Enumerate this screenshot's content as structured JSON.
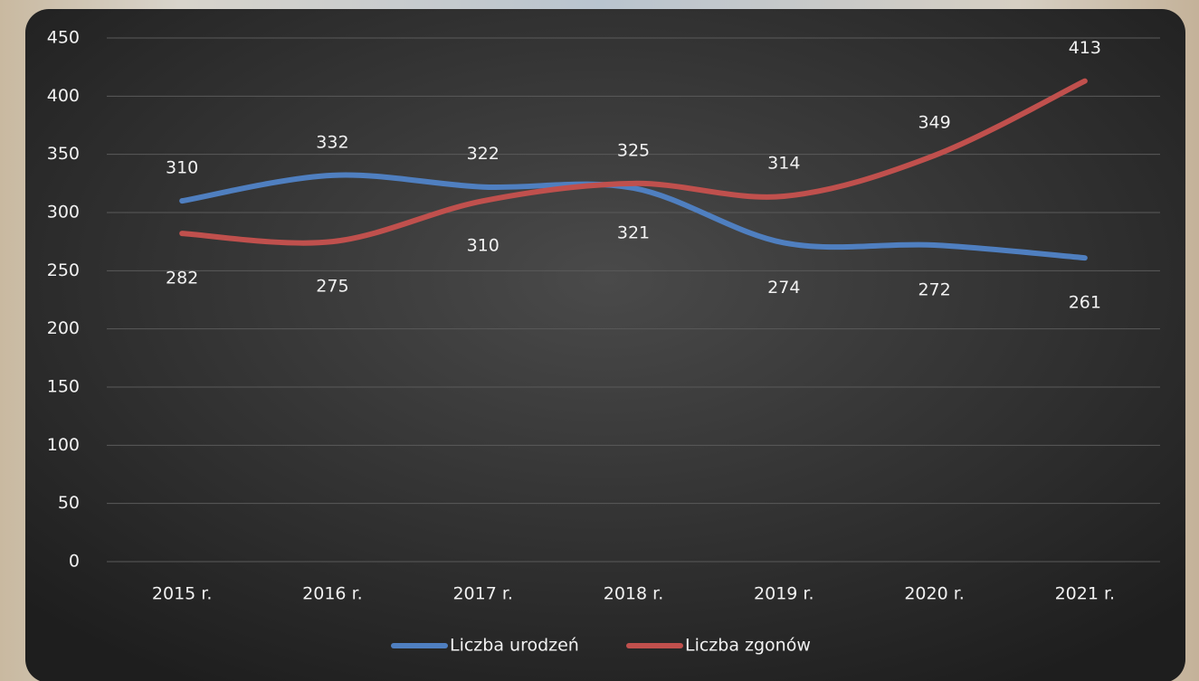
{
  "chart_data": {
    "type": "line",
    "categories": [
      "2015 r.",
      "2016 r.",
      "2017 r.",
      "2018 r.",
      "2019 r.",
      "2020 r.",
      "2021 r."
    ],
    "series": [
      {
        "name": "Liczba urodzeń",
        "color": "#4f7fc0",
        "values": [
          310,
          332,
          322,
          321,
          274,
          272,
          261
        ]
      },
      {
        "name": "Liczba zgonów",
        "color": "#c0504d",
        "values": [
          282,
          275,
          310,
          325,
          314,
          349,
          413
        ]
      }
    ],
    "ylim": [
      0,
      450
    ],
    "yticks": [
      0,
      50,
      100,
      150,
      200,
      250,
      300,
      350,
      400,
      450
    ],
    "grid": true,
    "legend": "bottom",
    "smooth": true
  }
}
